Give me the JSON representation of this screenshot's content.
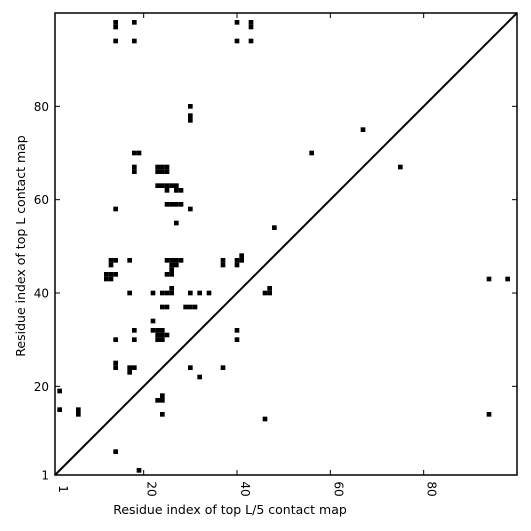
{
  "chart_data": {
    "type": "heatmap",
    "title": "",
    "xlabel": "Residue index of top L/5 contact map",
    "ylabel": "Residue index of top L contact map",
    "xlim": [
      1,
      100
    ],
    "ylim": [
      1,
      100
    ],
    "xticks": [
      1,
      20,
      40,
      60,
      80
    ],
    "yticks": [
      1,
      20,
      40,
      60,
      80
    ],
    "x_tick_label_rotation_deg": 90,
    "grid": false,
    "cell_color": "#000000",
    "diagonal": {
      "from": [
        1,
        1
      ],
      "to": [
        100,
        100
      ],
      "color": "#000000"
    },
    "cells": [
      [
        14,
        98
      ],
      [
        14,
        97
      ],
      [
        18,
        98
      ],
      [
        40,
        98
      ],
      [
        43,
        98
      ],
      [
        43,
        97
      ],
      [
        14,
        94
      ],
      [
        18,
        94
      ],
      [
        40,
        94
      ],
      [
        43,
        94
      ],
      [
        30,
        80
      ],
      [
        30,
        78
      ],
      [
        30,
        77
      ],
      [
        67,
        75
      ],
      [
        18,
        70
      ],
      [
        19,
        70
      ],
      [
        56,
        70
      ],
      [
        75,
        67
      ],
      [
        18,
        67
      ],
      [
        18,
        66
      ],
      [
        23,
        67
      ],
      [
        24,
        67
      ],
      [
        25,
        67
      ],
      [
        23,
        66
      ],
      [
        24,
        66
      ],
      [
        25,
        66
      ],
      [
        23,
        63
      ],
      [
        24,
        63
      ],
      [
        25,
        63
      ],
      [
        26,
        63
      ],
      [
        27,
        63
      ],
      [
        25,
        62
      ],
      [
        27,
        62
      ],
      [
        28,
        62
      ],
      [
        25,
        59
      ],
      [
        26,
        59
      ],
      [
        27,
        59
      ],
      [
        28,
        59
      ],
      [
        14,
        58
      ],
      [
        30,
        58
      ],
      [
        27,
        55
      ],
      [
        48,
        54
      ],
      [
        17,
        47
      ],
      [
        13,
        47
      ],
      [
        14,
        47
      ],
      [
        13,
        46
      ],
      [
        25,
        47
      ],
      [
        26,
        47
      ],
      [
        27,
        47
      ],
      [
        28,
        47
      ],
      [
        26,
        46
      ],
      [
        27,
        46
      ],
      [
        26,
        45
      ],
      [
        25,
        44
      ],
      [
        26,
        44
      ],
      [
        37,
        47
      ],
      [
        37,
        46
      ],
      [
        40,
        47
      ],
      [
        40,
        46
      ],
      [
        41,
        48
      ],
      [
        41,
        47
      ],
      [
        12,
        44
      ],
      [
        13,
        44
      ],
      [
        14,
        44
      ],
      [
        12,
        43
      ],
      [
        13,
        43
      ],
      [
        94,
        43
      ],
      [
        98,
        43
      ],
      [
        17,
        40
      ],
      [
        22,
        40
      ],
      [
        24,
        40
      ],
      [
        25,
        40
      ],
      [
        26,
        40
      ],
      [
        26,
        41
      ],
      [
        30,
        40
      ],
      [
        32,
        40
      ],
      [
        34,
        40
      ],
      [
        46,
        40
      ],
      [
        47,
        40
      ],
      [
        47,
        41
      ],
      [
        24,
        37
      ],
      [
        25,
        37
      ],
      [
        29,
        37
      ],
      [
        30,
        37
      ],
      [
        31,
        37
      ],
      [
        22,
        34
      ],
      [
        18,
        32
      ],
      [
        22,
        32
      ],
      [
        23,
        32
      ],
      [
        24,
        32
      ],
      [
        40,
        32
      ],
      [
        23,
        31
      ],
      [
        24,
        31
      ],
      [
        25,
        31
      ],
      [
        23,
        30
      ],
      [
        24,
        30
      ],
      [
        14,
        30
      ],
      [
        18,
        30
      ],
      [
        40,
        30
      ],
      [
        14,
        25
      ],
      [
        14,
        24
      ],
      [
        17,
        24
      ],
      [
        18,
        24
      ],
      [
        17,
        23
      ],
      [
        30,
        24
      ],
      [
        37,
        24
      ],
      [
        32,
        22
      ],
      [
        2,
        19
      ],
      [
        24,
        18
      ],
      [
        23,
        17
      ],
      [
        24,
        17
      ],
      [
        2,
        15
      ],
      [
        6,
        15
      ],
      [
        6,
        14
      ],
      [
        24,
        14
      ],
      [
        94,
        14
      ],
      [
        46,
        13
      ],
      [
        14,
        6
      ],
      [
        19,
        2
      ]
    ]
  }
}
